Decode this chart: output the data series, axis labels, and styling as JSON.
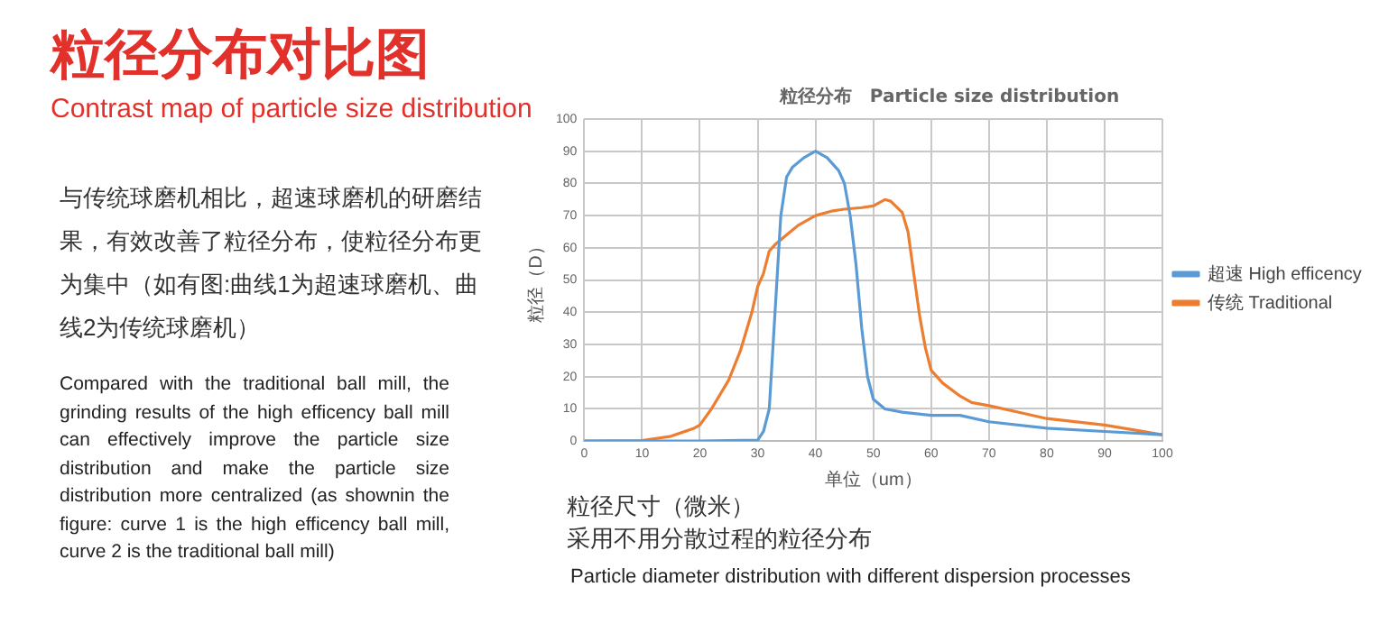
{
  "chart_data": {
    "type": "line",
    "title": "粒径分布　Particle size distribution",
    "xlabel": "单位（um）",
    "ylabel": "粒径（D）",
    "annotations": [
      "粒径分布对比图",
      "Contrast map of particle size distribution",
      "与传统球磨机相比，超速球磨机的研磨结果，有效改善了粒径分布，使粒径分布更为集中（如有图:曲线1为超速球磨机、曲线2为传统球磨机）",
      "Compared with the traditional ball mill, the grinding results of the high efficency ball mill can effectively improve the particle size distribution and make the particle size distribution more centralized  (as shownin the figure: curve 1 is the high efficency ball mill, curve 2 is the traditional ball mill)",
      "粒径尺寸（微米）",
      "采用不用分散过程的粒径分布",
      "Particle diameter distribution with different dispersion processes"
    ],
    "series": [
      {
        "name": "超速 High efficency",
        "color": "#5b9bd5",
        "x": [
          0,
          10,
          20,
          30,
          31,
          32,
          33,
          34,
          35,
          36,
          38,
          40,
          42,
          44,
          45,
          46,
          47,
          48,
          49,
          50,
          52,
          55,
          60,
          65,
          70,
          80,
          90,
          100
        ],
        "values": [
          0,
          0,
          0,
          0.3,
          3,
          10,
          40,
          70,
          82,
          85,
          88,
          90,
          88,
          84,
          80,
          70,
          55,
          35,
          20,
          13,
          10,
          9,
          8,
          8,
          6,
          4,
          3,
          2
        ]
      },
      {
        "name": "传统 Traditional",
        "color": "#ed7d31",
        "x": [
          0,
          10,
          15,
          19,
          20,
          22,
          25,
          27,
          29,
          30,
          31,
          32,
          33,
          35,
          37,
          40,
          43,
          45,
          48,
          50,
          52,
          53,
          55,
          56,
          57,
          58,
          59,
          60,
          62,
          65,
          67,
          70,
          75,
          80,
          90,
          100
        ],
        "values": [
          0,
          0.2,
          1.5,
          4,
          5,
          10,
          19,
          28,
          40,
          48,
          52,
          59,
          61,
          64,
          67,
          70,
          71.5,
          72,
          72.5,
          73,
          75,
          74.5,
          71,
          65,
          52,
          39,
          29,
          22,
          18,
          14,
          12,
          11,
          9,
          7,
          5,
          2
        ]
      }
    ],
    "xlim": [
      0,
      100
    ],
    "xticks": [
      0,
      10,
      20,
      30,
      40,
      50,
      60,
      70,
      80,
      90,
      100
    ],
    "ylim": [
      0,
      100
    ],
    "yticks": [
      0,
      10,
      20,
      30,
      40,
      50,
      60,
      70,
      80,
      90,
      100
    ],
    "grid": true,
    "legend": "right",
    "marker": "none",
    "line_style": "solid"
  }
}
